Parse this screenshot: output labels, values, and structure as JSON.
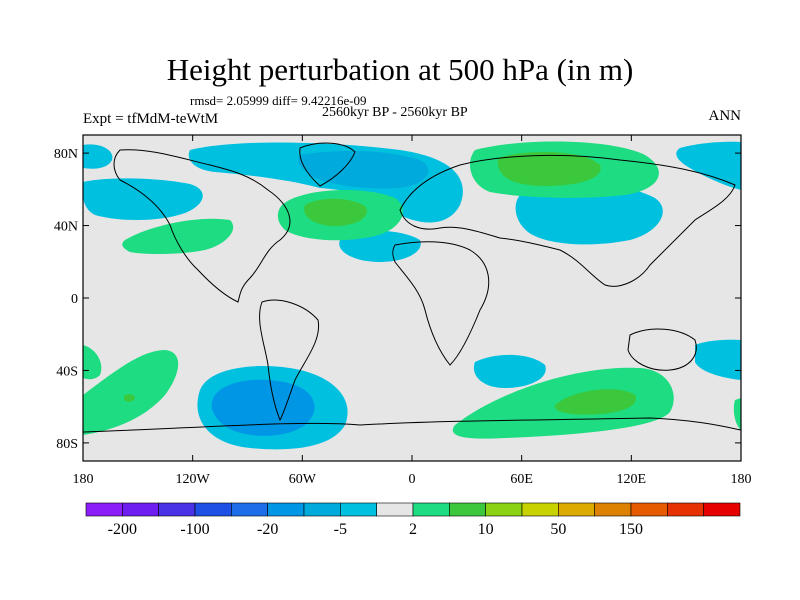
{
  "header": {
    "title": "Height perturbation at 500 hPa (in m)",
    "stats": "rmsd= 2.05999 diff= 9.42216e-09",
    "period": "2560kyr BP - 2560kyr BP",
    "experiment": "Expt = tfMdM-teWtM",
    "season": "ANN"
  },
  "map": {
    "projection": "cylindrical equidistant",
    "background_color": "#e6e6e6",
    "coastline_color": "#000000",
    "lat_range": [
      -90,
      90
    ],
    "lon_range": [
      -180,
      180
    ],
    "lat_ticks": [
      "80N",
      "40N",
      "0",
      "40S",
      "80S"
    ],
    "lat_tick_values": [
      80,
      40,
      0,
      -40,
      -80
    ],
    "lon_ticks": [
      "180",
      "120W",
      "60W",
      "0",
      "60E",
      "120E",
      "180"
    ],
    "lon_tick_values": [
      -180,
      -120,
      -60,
      0,
      60,
      120,
      180
    ],
    "anomalies": [
      {
        "label": "Greenland / Arctic Canada low",
        "sign": "negative",
        "level": "-5",
        "color": "#00b4dc"
      },
      {
        "label": "Siberia high",
        "sign": "positive",
        "level": "10",
        "color": "#3cc83c"
      },
      {
        "label": "North Atlantic high",
        "sign": "positive",
        "level": "10",
        "color": "#3cc83c"
      },
      {
        "label": "South Pacific low",
        "sign": "negative",
        "level": "-20",
        "color": "#0096e6"
      },
      {
        "label": "Southern Indian Ocean high",
        "sign": "positive",
        "level": "10",
        "color": "#3cc83c"
      }
    ]
  },
  "colorbar": {
    "colors": [
      "#8c1efa",
      "#6e1ef0",
      "#4a32e6",
      "#1e50e6",
      "#1e6eea",
      "#0096e6",
      "#00aadc",
      "#00c0e0",
      "#e6e6e6",
      "#1edc82",
      "#3cc83c",
      "#8cd214",
      "#c8d200",
      "#dcaa00",
      "#dc8200",
      "#e65a00",
      "#e63200",
      "#e60000"
    ],
    "labels": [
      "-200",
      "-100",
      "-20",
      "-5",
      "2",
      "10",
      "50",
      "150"
    ]
  }
}
